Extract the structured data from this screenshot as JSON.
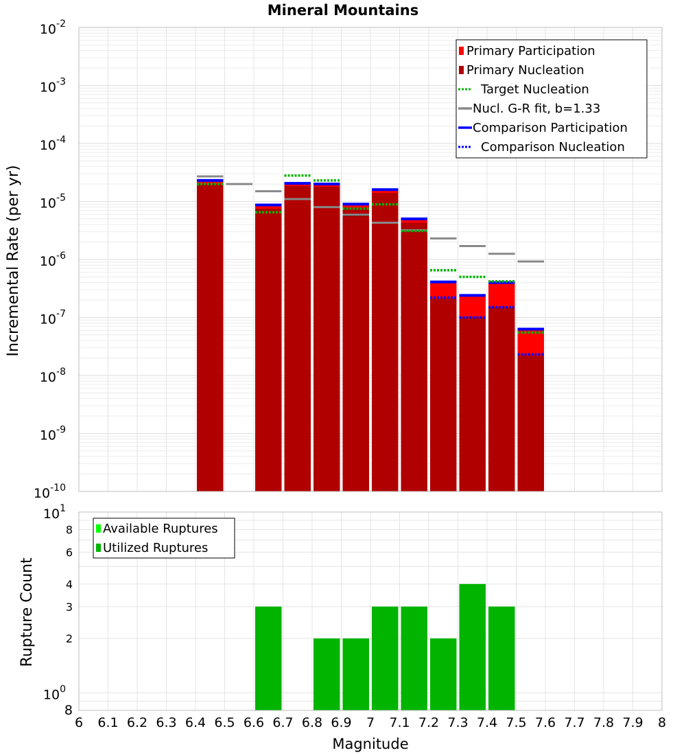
{
  "chart_data": [
    {
      "type": "bar",
      "title": "Mineral Mountains",
      "ylabel": "Incremental Rate (per yr)",
      "xlabel": "",
      "yscale": "log",
      "ylim": [
        1e-10,
        0.01
      ],
      "xlim": [
        6,
        8
      ],
      "bin_width": 0.1,
      "grid": true,
      "legend_placement": "top-right",
      "colors": {
        "primary_participation": "#ff0000",
        "primary_nucleation": "#b10000",
        "target_nucleation": "#00b400",
        "gr_fit": "#888888",
        "comparison_participation": "#0000ff",
        "comparison_nucleation": "#0000ff",
        "black_marker": "#000000"
      },
      "legend": [
        {
          "label": "Primary Participation",
          "style": "box",
          "color": "#ff0000"
        },
        {
          "label": "Primary Nucleation",
          "style": "box",
          "color": "#b10000"
        },
        {
          "label": "Target Nucleation",
          "style": "dotted",
          "color": "#00b400"
        },
        {
          "label": "Nucl. G-R fit, b=1.33",
          "style": "solid",
          "color": "#888888"
        },
        {
          "label": "Comparison Participation",
          "style": "solid",
          "color": "#0000ff"
        },
        {
          "label": "Comparison Nucleation",
          "style": "dotted",
          "color": "#0000ff"
        }
      ],
      "y_ticks": [
        {
          "value": 1e-10,
          "base": "10",
          "exp": "-10"
        },
        {
          "value": 1e-09,
          "base": "10",
          "exp": "-9"
        },
        {
          "value": 1e-08,
          "base": "10",
          "exp": "-8"
        },
        {
          "value": 1e-07,
          "base": "10",
          "exp": "-7"
        },
        {
          "value": 1e-06,
          "base": "10",
          "exp": "-6"
        },
        {
          "value": 1e-05,
          "base": "10",
          "exp": "-5"
        },
        {
          "value": 0.0001,
          "base": "10",
          "exp": "-4"
        },
        {
          "value": 0.001,
          "base": "10",
          "exp": "-3"
        },
        {
          "value": 0.01,
          "base": "10",
          "exp": "-2"
        }
      ],
      "series": [
        {
          "name": "Primary Participation",
          "x": [
            6.45,
            6.65,
            6.75,
            6.85,
            6.95,
            7.05,
            7.15,
            7.25,
            7.35,
            7.45,
            7.55
          ],
          "values": [
            2.2e-05,
            8.3e-06,
            1.95e-05,
            1.9e-05,
            8.7e-06,
            1.55e-05,
            4.8e-06,
            3.9e-07,
            2.3e-07,
            3.8e-07,
            6e-08
          ]
        },
        {
          "name": "Primary Nucleation",
          "x": [
            6.45,
            6.65,
            6.75,
            6.85,
            6.95,
            7.05,
            7.15,
            7.25,
            7.35,
            7.45,
            7.55
          ],
          "values": [
            2e-05,
            7.5e-06,
            1.85e-05,
            1.8e-05,
            7.8e-06,
            1.4e-05,
            4.3e-06,
            2.1e-07,
            1e-07,
            1.5e-07,
            2.2e-08
          ]
        },
        {
          "name": "Target Nucleation",
          "x": [
            6.45,
            6.65,
            6.75,
            6.85,
            6.95,
            7.05,
            7.15,
            7.25,
            7.35,
            7.45,
            7.55
          ],
          "values": [
            2e-05,
            6.5e-06,
            2.8e-05,
            2.3e-05,
            7.5e-06,
            8.9e-06,
            3.1e-06,
            6.5e-07,
            5e-07,
            4.2e-07,
            5.5e-08
          ]
        },
        {
          "name": "Nucl. G-R fit, b=1.33",
          "x": [
            6.45,
            6.55,
            6.65,
            6.75,
            6.85,
            6.95,
            7.05,
            7.15,
            7.25,
            7.35,
            7.45,
            7.55
          ],
          "values": [
            2.7e-05,
            2e-05,
            1.5e-05,
            1.1e-05,
            8e-06,
            5.9e-06,
            4.3e-06,
            3.2e-06,
            2.3e-06,
            1.7e-06,
            1.25e-06,
            9.2e-07
          ]
        },
        {
          "name": "Comparison Participation",
          "x": [
            6.45,
            6.65,
            6.75,
            6.85,
            6.95,
            7.05,
            7.15,
            7.25,
            7.35,
            7.45,
            7.55
          ],
          "values": [
            2.3e-05,
            8.7e-06,
            2.05e-05,
            2e-05,
            9e-06,
            1.6e-05,
            5e-06,
            4.1e-07,
            2.4e-07,
            4e-07,
            6.3e-08
          ]
        },
        {
          "name": "Comparison Nucleation",
          "x": [
            7.25,
            7.35,
            7.45,
            7.55
          ],
          "values": [
            2.2e-07,
            1e-07,
            1.5e-07,
            2.3e-08
          ]
        },
        {
          "name": "",
          "x": [
            6.75,
            6.85,
            6.95,
            7.05,
            7.15
          ],
          "values": [
            1.1e-05,
            8e-06,
            5.8e-06,
            4.3e-06,
            3.2e-06
          ]
        }
      ]
    },
    {
      "type": "bar",
      "title": "",
      "xlabel": "Magnitude",
      "ylabel": "Rupture Count",
      "yscale": "log",
      "ylim": [
        0.8,
        10
      ],
      "xlim": [
        6,
        8
      ],
      "grid": true,
      "legend_placement": "top-left",
      "legend": [
        {
          "label": "Available Ruptures",
          "style": "box",
          "color": "#00ff00"
        },
        {
          "label": "Utilized Ruptures",
          "style": "box",
          "color": "#00b400"
        }
      ],
      "y_ticks": [
        {
          "value": 0.8,
          "label": "8",
          "base": "",
          "exp": ""
        },
        {
          "value": 1,
          "label": "",
          "base": "10",
          "exp": "0"
        },
        {
          "value": 2,
          "label": "2",
          "base": "",
          "exp": ""
        },
        {
          "value": 3,
          "label": "3",
          "base": "",
          "exp": ""
        },
        {
          "value": 4,
          "label": "4",
          "base": "",
          "exp": ""
        },
        {
          "value": 6,
          "label": "6",
          "base": "",
          "exp": ""
        },
        {
          "value": 8,
          "label": "8",
          "base": "",
          "exp": ""
        },
        {
          "value": 10,
          "label": "",
          "base": "10",
          "exp": "1"
        }
      ],
      "x_ticks": [
        "6",
        "6.1",
        "6.2",
        "6.3",
        "6.4",
        "6.5",
        "6.6",
        "6.7",
        "6.8",
        "6.9",
        "7",
        "7.1",
        "7.2",
        "7.3",
        "7.4",
        "7.5",
        "7.6",
        "7.7",
        "7.8",
        "7.9",
        "8"
      ],
      "series": [
        {
          "name": "Utilized Ruptures",
          "x": [
            6.65,
            6.85,
            6.95,
            7.05,
            7.15,
            7.25,
            7.35,
            7.45
          ],
          "values": [
            3,
            2,
            2,
            3,
            3,
            2,
            4,
            3
          ]
        }
      ]
    }
  ]
}
